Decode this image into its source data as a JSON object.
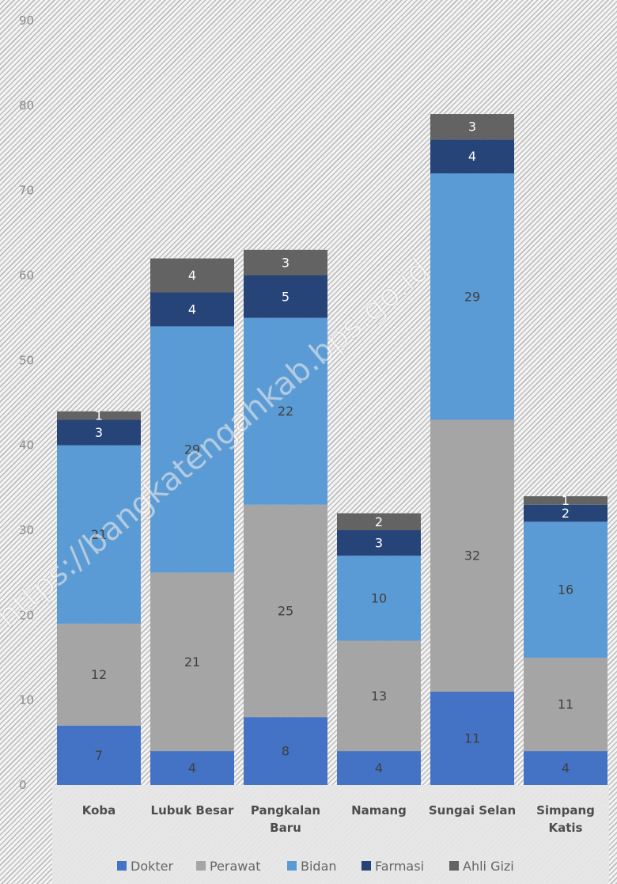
{
  "watermark": "https://bangkatengahkab.bps.go.id",
  "chart_data": {
    "type": "bar",
    "stacked": true,
    "title": "",
    "xlabel": "",
    "ylabel": "",
    "ylim": [
      0,
      90
    ],
    "yticks": [
      0,
      10,
      20,
      30,
      40,
      50,
      60,
      70,
      80,
      90
    ],
    "grid": false,
    "legend_position": "bottom",
    "categories": [
      [
        "Koba"
      ],
      [
        "Lubuk Besar"
      ],
      [
        "Pangkalan",
        "Baru"
      ],
      [
        "Namang"
      ],
      [
        "Sungai Selan"
      ],
      [
        "Simpang",
        "Katis"
      ]
    ],
    "series": [
      {
        "name": "Dokter",
        "color": "#4472c4",
        "label_color": "#404040",
        "values": [
          7,
          4,
          8,
          4,
          11,
          4
        ]
      },
      {
        "name": "Perawat",
        "color": "#a5a5a5",
        "label_color": "#404040",
        "values": [
          12,
          21,
          25,
          13,
          32,
          11
        ]
      },
      {
        "name": "Bidan",
        "color": "#5b9bd5",
        "label_color": "#404040",
        "values": [
          21,
          29,
          22,
          10,
          29,
          16
        ]
      },
      {
        "name": "Farmasi",
        "color": "#264478",
        "label_color": "#ffffff",
        "values": [
          3,
          4,
          5,
          3,
          4,
          2
        ]
      },
      {
        "name": "Ahli Gizi",
        "color": "#636363",
        "label_color": "#ffffff",
        "values": [
          1,
          4,
          3,
          2,
          3,
          1
        ]
      }
    ]
  }
}
